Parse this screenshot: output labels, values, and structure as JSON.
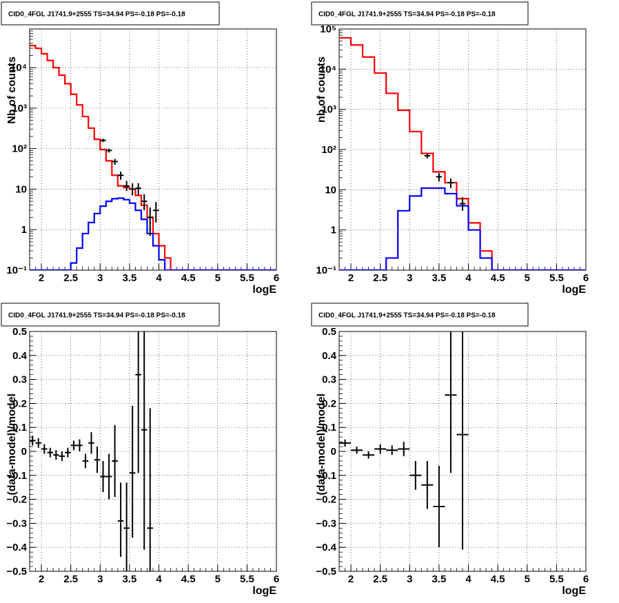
{
  "chart_data": [
    {
      "type": "step",
      "title": "CID0_4FGL J1741.9+2555 TS=34.94 PS=-0.18 PS=-0.18",
      "xlabel": "logE",
      "ylabel": "Nb of counts",
      "xlim": [
        1.8,
        6
      ],
      "ylim": [
        0.1,
        90000
      ],
      "yscale": "log",
      "grid": true,
      "x_ticks": [
        "2",
        "2.5",
        "3",
        "3.5",
        "4",
        "4.5",
        "5",
        "5.5",
        "6"
      ],
      "y_ticks": [
        "10⁻¹",
        "1",
        "10",
        "10²",
        "10³",
        "10⁴"
      ],
      "bin_edges": [
        1.8,
        1.9,
        2.0,
        2.1,
        2.2,
        2.3,
        2.4,
        2.5,
        2.6,
        2.7,
        2.8,
        2.9,
        3.0,
        3.1,
        3.2,
        3.3,
        3.4,
        3.5,
        3.6,
        3.7,
        3.8,
        3.9,
        4.0,
        4.1,
        4.2,
        4.3,
        4.4,
        4.5,
        4.6,
        4.7,
        4.8,
        4.9,
        5.0,
        5.1,
        5.2,
        5.3,
        5.4,
        5.5,
        5.6,
        5.7,
        5.8,
        5.9,
        6.0
      ],
      "series": [
        {
          "color": "#ff0000",
          "values": [
            35000,
            30000,
            22000,
            15000,
            10000,
            6500,
            4000,
            2200,
            1200,
            620,
            320,
            170,
            95,
            50,
            22,
            12,
            11,
            10,
            7,
            4,
            2,
            0.8,
            0.4,
            0.2,
            0.1,
            0.1,
            0.1,
            0.1,
            0.1,
            0.1,
            0.1,
            0.1,
            0.1,
            0.1,
            0.1,
            0.1,
            0.1,
            0.1,
            0.1,
            0.1,
            0.1,
            0.1
          ]
        },
        {
          "color": "#0000ff",
          "values": [
            0.1,
            0.1,
            0.1,
            0.1,
            0.1,
            0.1,
            0.1,
            0.15,
            0.35,
            0.8,
            1.5,
            2.5,
            3.8,
            5,
            5.8,
            6,
            5.5,
            4.5,
            3,
            1.8,
            0.8,
            0.4,
            0.18,
            0.1,
            0.1,
            0.1,
            0.1,
            0.1,
            0.1,
            0.1,
            0.1,
            0.1,
            0.1,
            0.1,
            0.1,
            0.1,
            0.1,
            0.1,
            0.1,
            0.1,
            0.1,
            0.1
          ]
        }
      ],
      "points": [
        {
          "x": 3.05,
          "y": 160,
          "ylo": 145,
          "yhi": 175
        },
        {
          "x": 3.15,
          "y": 90,
          "ylo": 80,
          "yhi": 100
        },
        {
          "x": 3.25,
          "y": 48,
          "ylo": 40,
          "yhi": 56
        },
        {
          "x": 3.35,
          "y": 22,
          "ylo": 17,
          "yhi": 27
        },
        {
          "x": 3.45,
          "y": 12,
          "ylo": 9,
          "yhi": 16
        },
        {
          "x": 3.55,
          "y": 10,
          "ylo": 7,
          "yhi": 14
        },
        {
          "x": 3.65,
          "y": 10.5,
          "ylo": 7,
          "yhi": 14
        },
        {
          "x": 3.75,
          "y": 5,
          "ylo": 3,
          "yhi": 7.5
        },
        {
          "x": 3.85,
          "y": 2,
          "ylo": 0.7,
          "yhi": 3.5
        },
        {
          "x": 3.95,
          "y": 3,
          "ylo": 1.5,
          "yhi": 4.8
        }
      ]
    },
    {
      "type": "step",
      "title": "CID0_4FGL J1741.9+2555 TS=34.94 PS=-0.18 PS=-0.18",
      "xlabel": "logE",
      "ylabel": "nb of counts",
      "xlim": [
        1.8,
        6
      ],
      "ylim": [
        0.1,
        100000
      ],
      "yscale": "log",
      "grid": true,
      "x_ticks": [
        "2",
        "2.5",
        "3",
        "3.5",
        "4",
        "4.5",
        "5",
        "5.5",
        "6"
      ],
      "y_ticks": [
        "10⁻¹",
        "1",
        "10",
        "10²",
        "10³",
        "10⁴",
        "10⁵"
      ],
      "bin_edges": [
        1.8,
        2.0,
        2.2,
        2.4,
        2.6,
        2.8,
        3.0,
        3.2,
        3.4,
        3.6,
        3.8,
        4.0,
        4.2,
        4.4,
        4.6,
        4.8,
        5.0,
        5.2,
        5.4,
        5.6,
        5.8,
        6.0
      ],
      "series": [
        {
          "color": "#ff0000",
          "values": [
            60000,
            40000,
            20000,
            8000,
            2500,
            950,
            280,
            80,
            28,
            15,
            6,
            1.5,
            0.3,
            0.1,
            0.1,
            0.1,
            0.1,
            0.1,
            0.1,
            0.1,
            0.1
          ]
        },
        {
          "color": "#0000ff",
          "values": [
            0.1,
            0.1,
            0.1,
            0.1,
            0.2,
            3,
            7,
            11,
            11,
            8,
            4,
            1,
            0.2,
            0.1,
            0.1,
            0.1,
            0.1,
            0.1,
            0.1,
            0.1,
            0.1
          ]
        }
      ],
      "points": [
        {
          "x": 3.3,
          "y": 70,
          "ylo": 60,
          "yhi": 80
        },
        {
          "x": 3.5,
          "y": 21,
          "ylo": 16,
          "yhi": 26
        },
        {
          "x": 3.7,
          "y": 15,
          "ylo": 11,
          "yhi": 19
        },
        {
          "x": 3.9,
          "y": 4.5,
          "ylo": 3,
          "yhi": 6.5
        }
      ]
    },
    {
      "type": "scatter",
      "title": "CID0_4FGL J1741.9+2555 TS=34.94 PS=-0.18 PS=-0.18",
      "xlabel": "logE",
      "ylabel": "(data-model)/model",
      "xlim": [
        1.8,
        6
      ],
      "ylim": [
        -0.5,
        0.5
      ],
      "grid": true,
      "x_ticks": [
        "2",
        "2.5",
        "3",
        "3.5",
        "4",
        "4.5",
        "5",
        "5.5",
        "6"
      ],
      "y_ticks": [
        "−0.5",
        "−0.4",
        "−0.3",
        "−0.2",
        "−0.1",
        "0",
        "0.1",
        "0.2",
        "0.3",
        "0.4",
        "0.5"
      ],
      "xerr": 0.05,
      "points": [
        {
          "x": 1.85,
          "y": 0.045,
          "ylo": 0.025,
          "yhi": 0.065
        },
        {
          "x": 1.95,
          "y": 0.035,
          "ylo": 0.015,
          "yhi": 0.055
        },
        {
          "x": 2.05,
          "y": 0.01,
          "ylo": -0.01,
          "yhi": 0.03
        },
        {
          "x": 2.15,
          "y": -0.005,
          "ylo": -0.025,
          "yhi": 0.015
        },
        {
          "x": 2.25,
          "y": -0.015,
          "ylo": -0.035,
          "yhi": 0.005
        },
        {
          "x": 2.35,
          "y": -0.02,
          "ylo": -0.04,
          "yhi": 0.0
        },
        {
          "x": 2.45,
          "y": -0.005,
          "ylo": -0.025,
          "yhi": 0.015
        },
        {
          "x": 2.55,
          "y": 0.025,
          "ylo": 0.005,
          "yhi": 0.045
        },
        {
          "x": 2.65,
          "y": 0.025,
          "ylo": 0.0,
          "yhi": 0.05
        },
        {
          "x": 2.75,
          "y": -0.04,
          "ylo": -0.07,
          "yhi": -0.01
        },
        {
          "x": 2.85,
          "y": 0.035,
          "ylo": -0.01,
          "yhi": 0.08
        },
        {
          "x": 2.95,
          "y": -0.035,
          "ylo": -0.09,
          "yhi": 0.02
        },
        {
          "x": 3.05,
          "y": -0.105,
          "ylo": -0.17,
          "yhi": -0.04
        },
        {
          "x": 3.15,
          "y": -0.105,
          "ylo": -0.2,
          "yhi": -0.01
        },
        {
          "x": 3.25,
          "y": -0.04,
          "ylo": -0.19,
          "yhi": 0.11
        },
        {
          "x": 3.35,
          "y": -0.29,
          "ylo": -0.44,
          "yhi": -0.13
        },
        {
          "x": 3.45,
          "y": -0.32,
          "ylo": -0.5,
          "yhi": -0.13
        },
        {
          "x": 3.55,
          "y": -0.09,
          "ylo": -0.36,
          "yhi": 0.19
        },
        {
          "x": 3.65,
          "y": 0.32,
          "ylo": -0.09,
          "yhi": 0.5
        },
        {
          "x": 3.75,
          "y": 0.09,
          "ylo": -0.41,
          "yhi": 0.5
        },
        {
          "x": 3.85,
          "y": -0.32,
          "ylo": -0.5,
          "yhi": 0.18
        }
      ]
    },
    {
      "type": "scatter",
      "title": "CID0_4FGL J1741.9+2555 TS=34.94 PS=-0.18 PS=-0.18",
      "xlabel": "logE",
      "ylabel": "(data-model)/model",
      "xlim": [
        1.8,
        6
      ],
      "ylim": [
        -0.5,
        0.5
      ],
      "grid": true,
      "x_ticks": [
        "2",
        "2.5",
        "3",
        "3.5",
        "4",
        "4.5",
        "5",
        "5.5",
        "6"
      ],
      "y_ticks": [
        "−0.5",
        "−0.4",
        "−0.3",
        "−0.2",
        "−0.1",
        "0",
        "0.1",
        "0.2",
        "0.3",
        "0.4",
        "0.5"
      ],
      "xerr": 0.1,
      "points": [
        {
          "x": 1.9,
          "y": 0.035,
          "ylo": 0.02,
          "yhi": 0.05
        },
        {
          "x": 2.1,
          "y": 0.005,
          "ylo": -0.01,
          "yhi": 0.02
        },
        {
          "x": 2.3,
          "y": -0.015,
          "ylo": -0.03,
          "yhi": 0.0
        },
        {
          "x": 2.5,
          "y": 0.01,
          "ylo": -0.01,
          "yhi": 0.03
        },
        {
          "x": 2.7,
          "y": 0.005,
          "ylo": -0.015,
          "yhi": 0.025
        },
        {
          "x": 2.9,
          "y": 0.01,
          "ylo": -0.02,
          "yhi": 0.04
        },
        {
          "x": 3.1,
          "y": -0.1,
          "ylo": -0.16,
          "yhi": -0.04
        },
        {
          "x": 3.3,
          "y": -0.14,
          "ylo": -0.24,
          "yhi": -0.04
        },
        {
          "x": 3.5,
          "y": -0.23,
          "ylo": -0.4,
          "yhi": -0.06
        },
        {
          "x": 3.7,
          "y": 0.235,
          "ylo": -0.09,
          "yhi": 0.5
        },
        {
          "x": 3.9,
          "y": 0.07,
          "ylo": -0.41,
          "yhi": 0.5
        }
      ]
    }
  ]
}
